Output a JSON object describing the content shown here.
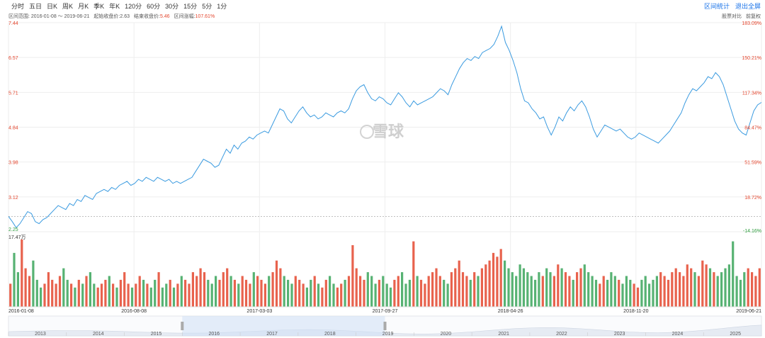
{
  "toolbar": {
    "tabs": [
      "分时",
      "五日",
      "日K",
      "周K",
      "月K",
      "季K",
      "年K",
      "120分",
      "60分",
      "30分",
      "15分",
      "5分",
      "1分"
    ],
    "active_tab": "周K",
    "actions": [
      "区间统计",
      "退出全屏"
    ]
  },
  "info": {
    "range_label": "区间范围:",
    "range_value": "2016-01-08 ～ 2019-06-21",
    "start_label": "起始收盘价:",
    "start_value": "2.63",
    "end_label": "结束收盘价:",
    "end_value": "5.46",
    "change_label": "区间涨幅:",
    "change_value": "107.61%",
    "right_links": [
      "股票对比",
      "前复权"
    ]
  },
  "watermark": "雪球",
  "colors": {
    "line": "#3b9be0",
    "up": "#e4462e",
    "down": "#3aa55a",
    "axis_left": "#e4462e",
    "axis_right_pos": "#e4462e",
    "axis_right_neg": "#2e9d3e"
  },
  "chart_data": {
    "type": "line",
    "series": [
      {
        "name": "",
        "x_start": "2016-01-08",
        "x_end": "2019-06-21",
        "values": [
          2.63,
          2.5,
          2.35,
          2.45,
          2.6,
          2.75,
          2.7,
          2.5,
          2.45,
          2.55,
          2.6,
          2.7,
          2.8,
          2.9,
          2.85,
          2.8,
          2.95,
          2.9,
          3.05,
          3.0,
          3.15,
          3.1,
          3.05,
          3.2,
          3.25,
          3.3,
          3.25,
          3.35,
          3.3,
          3.4,
          3.45,
          3.5,
          3.4,
          3.45,
          3.55,
          3.5,
          3.6,
          3.55,
          3.5,
          3.6,
          3.55,
          3.5,
          3.55,
          3.45,
          3.5,
          3.45,
          3.5,
          3.55,
          3.6,
          3.75,
          3.9,
          4.05,
          4.0,
          3.95,
          3.85,
          3.9,
          4.1,
          4.3,
          4.2,
          4.4,
          4.3,
          4.45,
          4.5,
          4.6,
          4.55,
          4.65,
          4.7,
          4.75,
          4.7,
          4.9,
          5.1,
          5.3,
          5.25,
          5.05,
          4.95,
          5.1,
          5.25,
          5.35,
          5.2,
          5.1,
          5.15,
          5.05,
          5.1,
          5.2,
          5.15,
          5.1,
          5.2,
          5.25,
          5.2,
          5.3,
          5.55,
          5.75,
          5.85,
          5.9,
          5.7,
          5.55,
          5.5,
          5.6,
          5.55,
          5.45,
          5.4,
          5.55,
          5.7,
          5.6,
          5.45,
          5.35,
          5.5,
          5.4,
          5.45,
          5.5,
          5.55,
          5.6,
          5.7,
          5.8,
          5.75,
          5.65,
          5.9,
          6.1,
          6.3,
          6.45,
          6.55,
          6.5,
          6.6,
          6.55,
          6.7,
          6.75,
          6.8,
          6.9,
          7.1,
          7.35,
          6.95,
          6.75,
          6.5,
          6.2,
          5.8,
          5.5,
          5.45,
          5.3,
          5.2,
          5.05,
          5.1,
          4.85,
          4.65,
          4.85,
          5.1,
          5.0,
          5.2,
          5.35,
          5.25,
          5.4,
          5.5,
          5.35,
          5.1,
          4.8,
          4.6,
          4.75,
          4.9,
          4.85,
          4.8,
          4.75,
          4.8,
          4.7,
          4.6,
          4.55,
          4.6,
          4.7,
          4.65,
          4.6,
          4.55,
          4.5,
          4.45,
          4.55,
          4.65,
          4.75,
          4.9,
          5.05,
          5.2,
          5.45,
          5.65,
          5.8,
          5.75,
          5.85,
          5.95,
          6.1,
          6.05,
          6.2,
          6.1,
          5.9,
          5.6,
          5.3,
          5.0,
          4.8,
          4.7,
          4.65,
          4.95,
          5.25,
          5.4,
          5.46
        ],
        "volumes": [
          6,
          14,
          9,
          17.47,
          10,
          8,
          12,
          7,
          5,
          6,
          9,
          7,
          6,
          8,
          10,
          7,
          6,
          5,
          7,
          6,
          8,
          9,
          6,
          5,
          6,
          7,
          8,
          6,
          5,
          7,
          9,
          6,
          5,
          6,
          8,
          7,
          6,
          5,
          7,
          9,
          5,
          6,
          7,
          5,
          6,
          8,
          7,
          6,
          9,
          8,
          10,
          9,
          7,
          6,
          8,
          7,
          9,
          10,
          8,
          7,
          6,
          8,
          7,
          6,
          9,
          8,
          7,
          6,
          8,
          9,
          12,
          10,
          8,
          7,
          6,
          8,
          7,
          6,
          5,
          7,
          8,
          6,
          5,
          7,
          8,
          6,
          5,
          6,
          7,
          8,
          16,
          10,
          8,
          7,
          9,
          8,
          6,
          7,
          8,
          6,
          5,
          7,
          8,
          9,
          6,
          7,
          17,
          8,
          7,
          6,
          8,
          9,
          10,
          8,
          7,
          6,
          9,
          10,
          12,
          9,
          8,
          7,
          9,
          8,
          10,
          11,
          12,
          14,
          13,
          15,
          12,
          10,
          9,
          8,
          11,
          10,
          9,
          8,
          7,
          9,
          8,
          10,
          9,
          8,
          11,
          10,
          9,
          8,
          7,
          9,
          10,
          11,
          9,
          8,
          7,
          6,
          8,
          7,
          9,
          8,
          7,
          6,
          8,
          7,
          6,
          5,
          7,
          8,
          6,
          7,
          8,
          9,
          8,
          7,
          9,
          10,
          9,
          8,
          11,
          10,
          9,
          8,
          12,
          11,
          10,
          9,
          8,
          9,
          10,
          11,
          17,
          8,
          7,
          9,
          10,
          9,
          8,
          10
        ]
      }
    ],
    "x_tick_labels": [
      "2016-01-08",
      "2016-08-08",
      "2017-03-03",
      "2017-09-27",
      "2018-04-26",
      "2018-11-20",
      "2019-06-21"
    ],
    "y_left_ticks": [
      "7.44",
      "6.57",
      "5.71",
      "4.84",
      "3.98",
      "3.12",
      "2.25"
    ],
    "y_right_ticks": [
      "183.09%",
      "150.21%",
      "117.34%",
      "84.47%",
      "51.59%",
      "18.72%",
      "-14.16%"
    ],
    "ylim": [
      2.25,
      7.44
    ],
    "volume_max_label": "17.47万",
    "navigator_years": [
      "2013",
      "2014",
      "2015",
      "2016",
      "2017",
      "2018",
      "2019",
      "2020",
      "2021",
      "2022",
      "2023",
      "2024",
      "2025"
    ],
    "navigator_selected": [
      "2016",
      "2019"
    ],
    "grid": true
  }
}
